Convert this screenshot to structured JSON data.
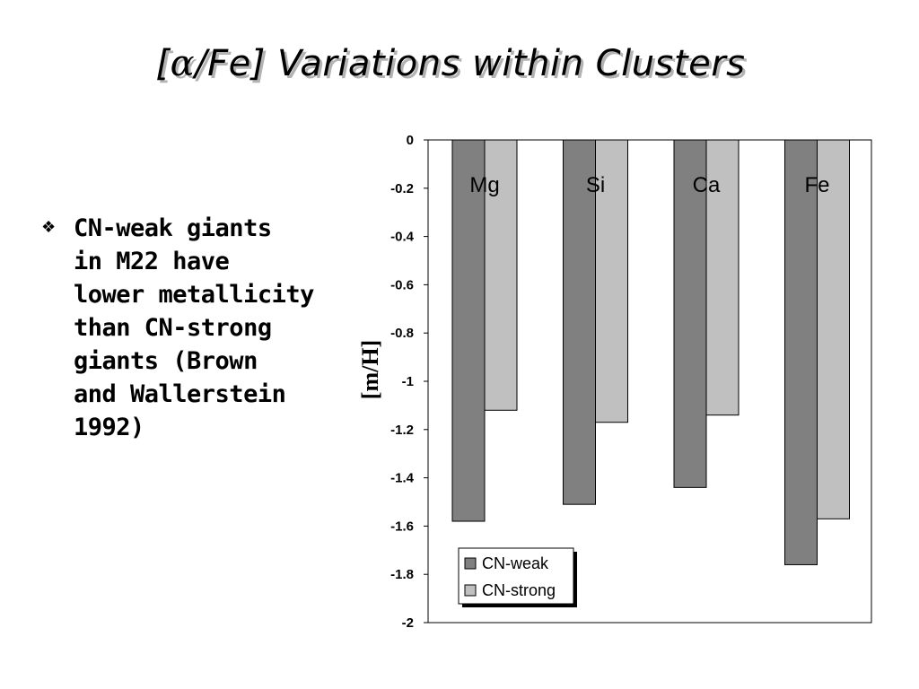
{
  "slide": {
    "title_alpha": "α",
    "title_pre": "[",
    "title_post": "/Fe] Variations within Clusters",
    "bullet_icon": "diamond-bullet-icon",
    "bullet_text": "CN-weak giants\nin M22 have\nlower metallicity\nthan CN-strong\ngiants (Brown\nand Wallerstein\n1992)"
  },
  "colors": {
    "cn_weak": "#808080",
    "cn_strong": "#c0c0c0",
    "title_shadow": "#b3b3b3"
  },
  "chart_data": {
    "type": "bar",
    "categories": [
      "Mg",
      "Si",
      "Ca",
      "Fe"
    ],
    "series": [
      {
        "name": "CN-weak",
        "values": [
          -1.58,
          -1.51,
          -1.44,
          -1.76
        ]
      },
      {
        "name": "CN-strong",
        "values": [
          -1.12,
          -1.17,
          -1.14,
          -1.57
        ]
      }
    ],
    "ylabel": "[m/H]",
    "xlabel": "",
    "ylim": [
      -2,
      0
    ],
    "yticks": [
      "0",
      "-0.2",
      "-0.4",
      "-0.6",
      "-0.8",
      "-1",
      "-1.2",
      "-1.4",
      "-1.6",
      "-1.8",
      "-2"
    ],
    "ytick_values": [
      0,
      -0.2,
      -0.4,
      -0.6,
      -0.8,
      -1,
      -1.2,
      -1.4,
      -1.6,
      -1.8,
      -2
    ],
    "grid": false,
    "legend_position": "bottom-left"
  }
}
